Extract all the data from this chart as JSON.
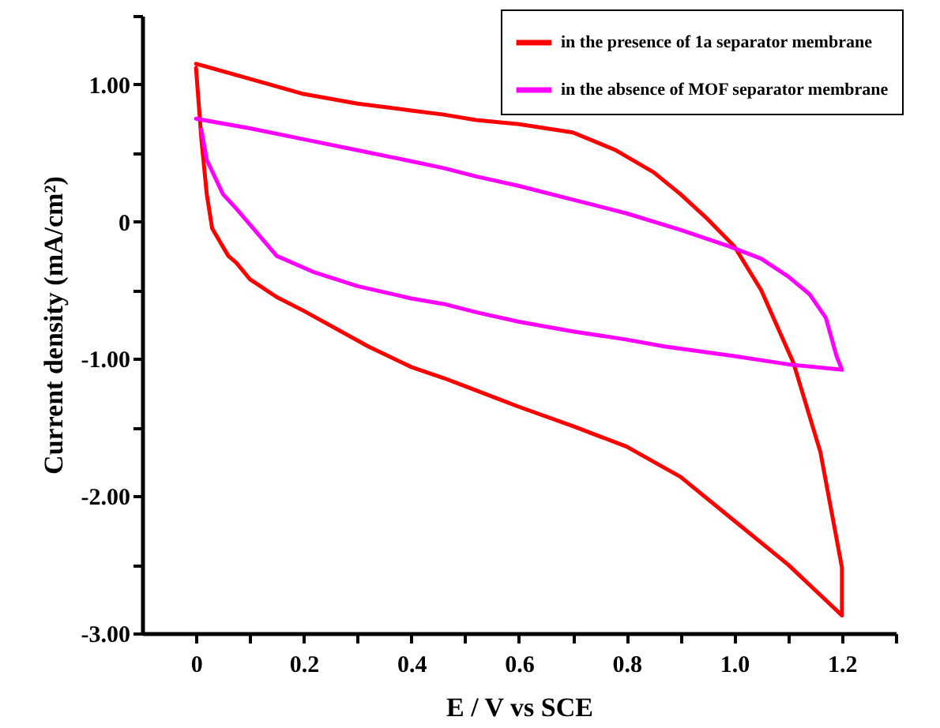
{
  "chart_data": {
    "type": "line",
    "xlabel": "E / V vs  SCE",
    "ylabel": "Current density (mA/cm²)",
    "xlim": [
      -0.1,
      1.3
    ],
    "ylim": [
      -3,
      1.5
    ],
    "xticks": [
      0,
      {
        "value": 0.1,
        "label": null
      },
      0.2,
      {
        "value": 0.3,
        "label": null
      },
      0.4,
      {
        "value": 0.5,
        "label": null
      },
      0.6,
      {
        "value": 0.7,
        "label": null
      },
      0.8,
      {
        "value": 0.9,
        "label": null
      },
      {
        "value": 1,
        "label": "1.0"
      },
      {
        "value": 1.1,
        "label": null
      },
      1.2,
      {
        "value": 1.3,
        "label": null
      }
    ],
    "yticks": [
      {
        "value": -3,
        "label": "-3.00"
      },
      {
        "value": -2.5,
        "label": null
      },
      {
        "value": -2,
        "label": "-2.00"
      },
      {
        "value": -1.5,
        "label": null
      },
      {
        "value": -1,
        "label": "-1.00"
      },
      {
        "value": -0.5,
        "label": null
      },
      0,
      {
        "value": 0.5,
        "label": null
      },
      {
        "value": 1,
        "label": "1.00"
      },
      {
        "value": 1.5,
        "label": null
      }
    ],
    "grid": false,
    "legend": "top right",
    "marker": "none",
    "line_style": "solid",
    "series": [
      {
        "name": "in the presence of  1a separator membrane",
        "color": "#ff0000",
        "x": [
          0,
          0.1,
          0.2,
          0.3,
          0.4,
          0.46,
          0.52,
          0.6,
          0.7,
          0.78,
          0.85,
          0.9,
          0.95,
          1.0,
          1.05,
          1.11,
          1.16,
          1.2,
          1.2,
          1.1,
          1.0,
          0.9,
          0.8,
          0.7,
          0.6,
          0.5,
          0.46,
          0.4,
          0.32,
          0.2,
          0.15,
          0.1,
          0.075,
          0.06,
          0.03,
          0.02,
          0.01,
          0
        ],
        "values": [
          1.15,
          1.04,
          0.93,
          0.86,
          0.81,
          0.78,
          0.74,
          0.71,
          0.65,
          0.52,
          0.36,
          0.2,
          0.02,
          -0.18,
          -0.5,
          -1.03,
          -1.68,
          -2.52,
          -2.87,
          -2.5,
          -2.18,
          -1.86,
          -1.64,
          -1.49,
          -1.35,
          -1.2,
          -1.14,
          -1.06,
          -0.91,
          -0.65,
          -0.55,
          -0.42,
          -0.3,
          -0.25,
          -0.05,
          0.2,
          0.6,
          1.12
        ]
      },
      {
        "name": "in the absence of MOF separator membrane",
        "color": "#ff00ff",
        "x": [
          0,
          0.1,
          0.2,
          0.3,
          0.4,
          0.46,
          0.52,
          0.6,
          0.7,
          0.8,
          0.9,
          0.99,
          1.05,
          1.1,
          1.14,
          1.17,
          1.19,
          1.2,
          1.1,
          1.0,
          0.87,
          0.8,
          0.7,
          0.6,
          0.52,
          0.46,
          0.4,
          0.3,
          0.22,
          0.15,
          0.076,
          0.05,
          0.02,
          0.01
        ],
        "values": [
          0.75,
          0.68,
          0.6,
          0.52,
          0.44,
          0.39,
          0.33,
          0.26,
          0.16,
          0.06,
          -0.06,
          -0.18,
          -0.27,
          -0.4,
          -0.53,
          -0.7,
          -0.98,
          -1.08,
          -1.04,
          -0.98,
          -0.91,
          -0.86,
          -0.8,
          -0.73,
          -0.66,
          -0.6,
          -0.56,
          -0.47,
          -0.37,
          -0.25,
          0.09,
          0.2,
          0.45,
          0.67
        ]
      }
    ]
  }
}
